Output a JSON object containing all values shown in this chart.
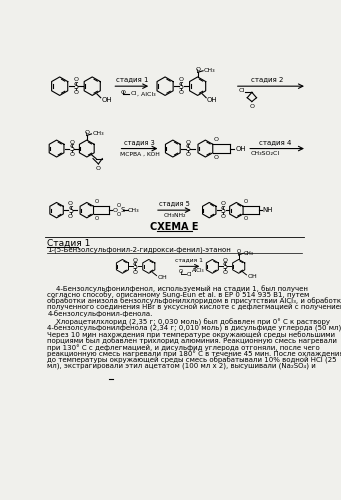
{
  "bg_color": "#f0f0ec",
  "scheme_title": "СХЕМА Е",
  "section_title": "Стадия 1",
  "compound_title": "1-(5-Бензолсульфонил-2-гидрокси-фенил)-этанон",
  "stage1_label": "стадия 1",
  "stage2_label": "стадия 2",
  "stage3_label": "стадия 3",
  "stage4_label": "стадия 4",
  "stage5_label": "стадия 5",
  "reagent1": "AlCl₃",
  "reagent3": "MCPBA , KOH",
  "reagent4": "CH₃SO₂Cl",
  "reagent5": "CH₃NH₂",
  "p1_lines": [
    "    4-Бензолсульфонилфенол, используемый на стадии 1, был получен",
    "согласно способу, описанному Sung-Eun et al. в EP 0 514 935 B1, путем",
    "обработки анизола бензолсульфонилхлоридом в присутствии AlCl₃, и обработки",
    "полученного соединения HBr в уксусной кислоте с дефлегмацией с получением",
    "4-бензолсульфонил-фенола."
  ],
  "p2_lines": [
    "    Хлорацетилхлорид (2,35 г; 0,030 моль) был добавлен при 0° C к раствору",
    "4-бензолсульфонилфенола (2,34 г; 0,010 моль) в дисульфиде углерода (50 мл).",
    "Через 10 мин нахождения при температуре окружающей среды небольшими",
    "порциями был добавлен трихлорид алюминия. Реакционную смесь нагревали",
    "при 130° C с дефлегмацией, и дисульфид углерода отгоняли, после чего",
    "реакционную смесь нагревали при 180° C в течение 45 мин. После охлаждения",
    "до температуры окружающей среды смесь обрабатывали 10% водной HCl (25",
    "мл), экстрагировали этил ацетатом (100 мл x 2), высушивали (Na₂SO₄) и"
  ]
}
